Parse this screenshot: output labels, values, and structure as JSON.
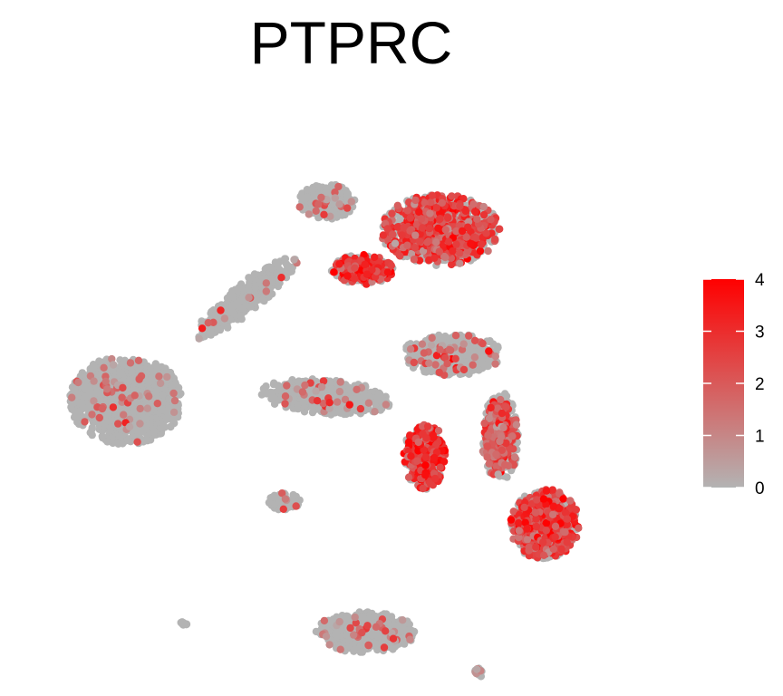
{
  "chart_data": {
    "type": "scatter",
    "title": "PTPRC",
    "xlabel": "",
    "ylabel": "",
    "grid": false,
    "axes_visible": false,
    "legend": {
      "placement": "right",
      "type": "colorbar",
      "ticks": [
        "0",
        "1",
        "2",
        "3",
        "4"
      ],
      "range": [
        0,
        4
      ],
      "colors": {
        "low": "#b3b3b3",
        "high": "#ff0000"
      }
    },
    "xlim": [
      -10,
      10
    ],
    "ylim": [
      -10,
      10
    ],
    "clusters": [
      {
        "id": "left-blob",
        "cx": -7.6,
        "cy": -0.6,
        "rx": 1.8,
        "ry": 1.5,
        "n": 1500,
        "high_frac": 0.05,
        "mean_high": 1.5
      },
      {
        "id": "diagonal-strand",
        "cx": -3.6,
        "cy": 3.0,
        "rx": 0.5,
        "ry": 2.1,
        "angle": -50,
        "n": 450,
        "high_frac": 0.04,
        "mean_high": 1.5
      },
      {
        "id": "center-band",
        "cx": -0.9,
        "cy": -0.5,
        "rx": 2.1,
        "ry": 0.6,
        "angle": -5,
        "n": 600,
        "high_frac": 0.06,
        "mean_high": 1.5
      },
      {
        "id": "top-stem",
        "cx": -0.9,
        "cy": 6.4,
        "rx": 0.9,
        "ry": 0.6,
        "n": 350,
        "high_frac": 0.05,
        "mean_high": 1.5
      },
      {
        "id": "top-right-lobe",
        "cx": 2.9,
        "cy": 5.4,
        "rx": 1.9,
        "ry": 1.2,
        "n": 1200,
        "high_frac": 0.55,
        "mean_high": 2.5
      },
      {
        "id": "top-left-arm",
        "cx": 0.3,
        "cy": 4.0,
        "rx": 1.0,
        "ry": 0.5,
        "n": 400,
        "high_frac": 0.6,
        "mean_high": 2.8
      },
      {
        "id": "mid-right-head",
        "cx": 3.3,
        "cy": 1.0,
        "rx": 1.6,
        "ry": 0.7,
        "n": 600,
        "high_frac": 0.08,
        "mean_high": 1.8
      },
      {
        "id": "mid-left-lobe",
        "cx": 2.4,
        "cy": -2.6,
        "rx": 0.7,
        "ry": 1.1,
        "n": 500,
        "high_frac": 0.6,
        "mean_high": 3.0
      },
      {
        "id": "mid-right-column",
        "cx": 4.9,
        "cy": -1.9,
        "rx": 0.6,
        "ry": 1.5,
        "n": 500,
        "high_frac": 0.35,
        "mean_high": 2.0
      },
      {
        "id": "bottom-right-blob",
        "cx": 6.4,
        "cy": -5.0,
        "rx": 1.1,
        "ry": 1.2,
        "n": 900,
        "high_frac": 0.6,
        "mean_high": 2.6
      },
      {
        "id": "small-center",
        "cx": -2.3,
        "cy": -4.2,
        "rx": 0.5,
        "ry": 0.3,
        "n": 120,
        "high_frac": 0.03,
        "mean_high": 1.3
      },
      {
        "id": "bottom-center",
        "cx": 0.4,
        "cy": -8.8,
        "rx": 1.6,
        "ry": 0.7,
        "n": 700,
        "high_frac": 0.05,
        "mean_high": 1.6
      },
      {
        "id": "tiny-bottom-left",
        "cx": -5.7,
        "cy": -8.5,
        "rx": 0.15,
        "ry": 0.1,
        "n": 15,
        "high_frac": 0.0,
        "mean_high": 0
      },
      {
        "id": "tiny-bottom-right",
        "cx": 4.2,
        "cy": -10.2,
        "rx": 0.15,
        "ry": 0.2,
        "n": 20,
        "high_frac": 0.2,
        "mean_high": 1.5
      }
    ]
  }
}
